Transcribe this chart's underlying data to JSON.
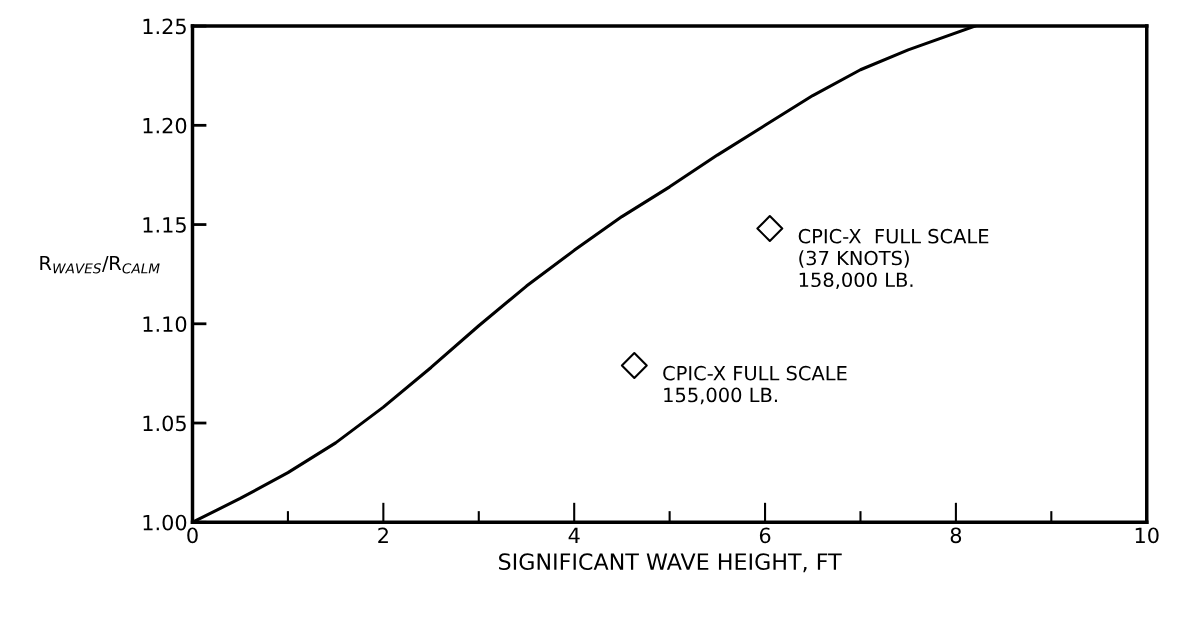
{
  "chart_data": {
    "type": "line",
    "xlabel": "SIGNIFICANT WAVE HEIGHT, FT",
    "ylabel": "R$_{WAVES}$/R$_{CALM}$",
    "xlim": [
      0,
      10
    ],
    "ylim": [
      1.0,
      1.25
    ],
    "xticks": [
      0,
      {
        "value": 1,
        "label": null
      },
      2,
      {
        "value": 3,
        "label": null
      },
      4,
      {
        "value": 5,
        "label": null
      },
      6,
      {
        "value": 7,
        "label": null
      },
      8,
      {
        "value": 9,
        "label": null
      },
      10
    ],
    "yticks": [
      {
        "value": 1.0,
        "label": "1.00"
      },
      1.05,
      {
        "value": 1.1,
        "label": "1.10"
      },
      1.15,
      {
        "value": 1.2,
        "label": "1.20"
      },
      1.25
    ],
    "grid": false,
    "legend": false,
    "series": [
      {
        "color": "#000000",
        "marker": "none",
        "line_style": "solid",
        "x": [
          0,
          0.5,
          1,
          1.5,
          2,
          2.5,
          3,
          3.5,
          4,
          4.5,
          5,
          5.5,
          6,
          6.5,
          7,
          7.5,
          8.2
        ],
        "values": [
          1.0,
          1.012,
          1.025,
          1.04,
          1.058,
          1.078,
          1.099,
          1.119,
          1.137,
          1.154,
          1.169,
          1.185,
          1.2,
          1.215,
          1.228,
          1.238,
          1.25
        ]
      },
      {
        "type": "scatter",
        "color": "#000000",
        "marker": "diamond",
        "x": [
          6.05,
          4.63
        ],
        "values": [
          1.148,
          1.079
        ]
      }
    ],
    "annotations": [
      {
        "text": "CPIC-X  FULL SCALE\n(37 KNOTS)\n158,000 LB.",
        "x": 6.05,
        "y": 1.148
      },
      {
        "text": "CPIC-X FULL SCALE\n155,000 LB.",
        "x": 4.63,
        "y": 1.079
      }
    ]
  }
}
